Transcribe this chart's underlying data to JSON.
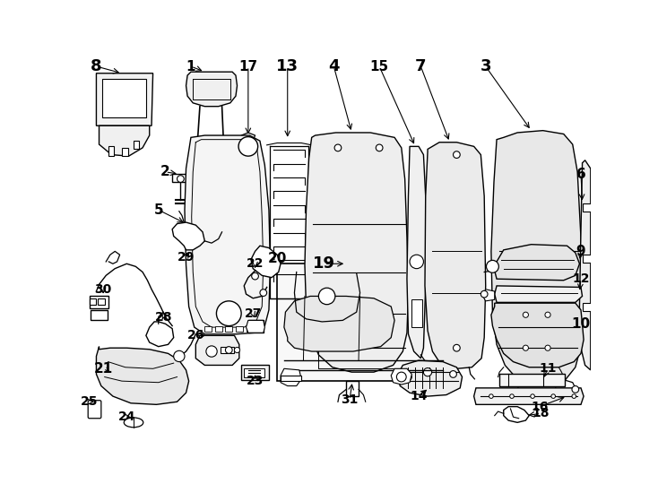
{
  "background_color": "#ffffff",
  "line_color": "#000000",
  "fig_width": 7.34,
  "fig_height": 5.4,
  "dpi": 100,
  "label_fontsize": 11,
  "border_lw": 1.2
}
